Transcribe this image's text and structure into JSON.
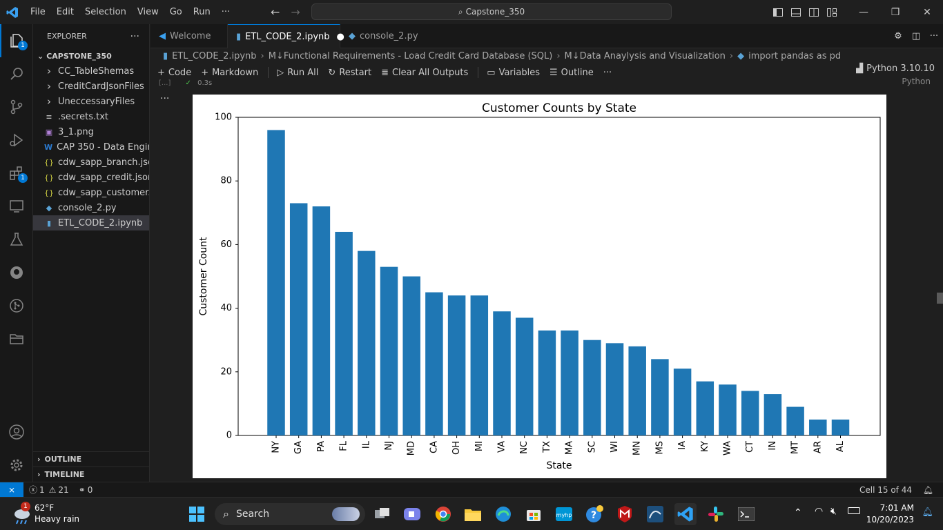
{
  "window": {
    "menu": [
      "File",
      "Edit",
      "Selection",
      "View",
      "Go",
      "Run"
    ],
    "menu_more": "···",
    "command_center": "Capstone_350"
  },
  "activity": {
    "explorer_badge": "1",
    "extensions_badge": "1"
  },
  "sidebar": {
    "title": "EXPLORER",
    "more": "···",
    "project": "CAPSTONE_350",
    "items": [
      {
        "label": "CC_TableShemas",
        "type": "folder"
      },
      {
        "label": "CreditCardJsonFiles",
        "type": "folder"
      },
      {
        "label": "UneccessaryFiles",
        "type": "folder"
      },
      {
        "label": ".secrets.txt",
        "type": "text"
      },
      {
        "label": "3_1.png",
        "type": "image"
      },
      {
        "label": "CAP 350 - Data Engin...",
        "type": "doc"
      },
      {
        "label": "cdw_sapp_branch.json",
        "type": "json"
      },
      {
        "label": "cdw_sapp_credit.json",
        "type": "json"
      },
      {
        "label": "cdw_sapp_customer.j...",
        "type": "json"
      },
      {
        "label": "console_2.py",
        "type": "python"
      },
      {
        "label": "ETL_CODE_2.ipynb",
        "type": "notebook",
        "selected": true
      }
    ],
    "outline": "OUTLINE",
    "timeline": "TIMELINE"
  },
  "tabs": [
    {
      "label": "Welcome",
      "icon": "vscode-icon",
      "active": false
    },
    {
      "label": "ETL_CODE_2.ipynb",
      "icon": "notebook-icon",
      "active": true,
      "dirty": true
    },
    {
      "label": "console_2.py",
      "icon": "python-icon",
      "active": false
    }
  ],
  "breadcrumb": [
    "ETL_CODE_2.ipynb",
    "M↓Functional Requirements - Load Credit Card Database (SQL)",
    "M↓Data Anaylysis and Visualization",
    "import pandas as pd"
  ],
  "toolbar": {
    "code": "Code",
    "markdown": "Markdown",
    "run_all": "Run All",
    "restart": "Restart",
    "clear": "Clear All Outputs",
    "variables": "Variables",
    "outline": "Outline",
    "more": "···",
    "kernel": "Python 3.10.10"
  },
  "cell": {
    "time": "0.3s",
    "lang": "Python",
    "more": "···"
  },
  "chart_data": {
    "type": "bar",
    "title": "Customer Counts by State",
    "xlabel": "State",
    "ylabel": "Customer Count",
    "ylim": [
      0,
      100
    ],
    "yticks": [
      0,
      20,
      40,
      60,
      80,
      100
    ],
    "categories": [
      "NY",
      "GA",
      "PA",
      "FL",
      "IL",
      "NJ",
      "MD",
      "CA",
      "OH",
      "MI",
      "VA",
      "NC",
      "TX",
      "MA",
      "SC",
      "WI",
      "MN",
      "MS",
      "IA",
      "KY",
      "WA",
      "CT",
      "IN",
      "MT",
      "AR",
      "AL"
    ],
    "values": [
      96,
      73,
      72,
      64,
      58,
      53,
      50,
      45,
      44,
      44,
      39,
      37,
      33,
      33,
      30,
      29,
      28,
      24,
      21,
      17,
      16,
      14,
      13,
      9,
      5,
      5
    ],
    "color": "#1f77b4"
  },
  "statusbar": {
    "errors": "1",
    "warnings": "21",
    "ports": "0",
    "cell": "Cell 15 of 44"
  },
  "taskbar": {
    "weather_temp": "62°F",
    "weather_desc": "Heavy rain",
    "weather_badge": "1",
    "search": "Search",
    "time": "7:01 AM",
    "date": "10/20/2023"
  }
}
